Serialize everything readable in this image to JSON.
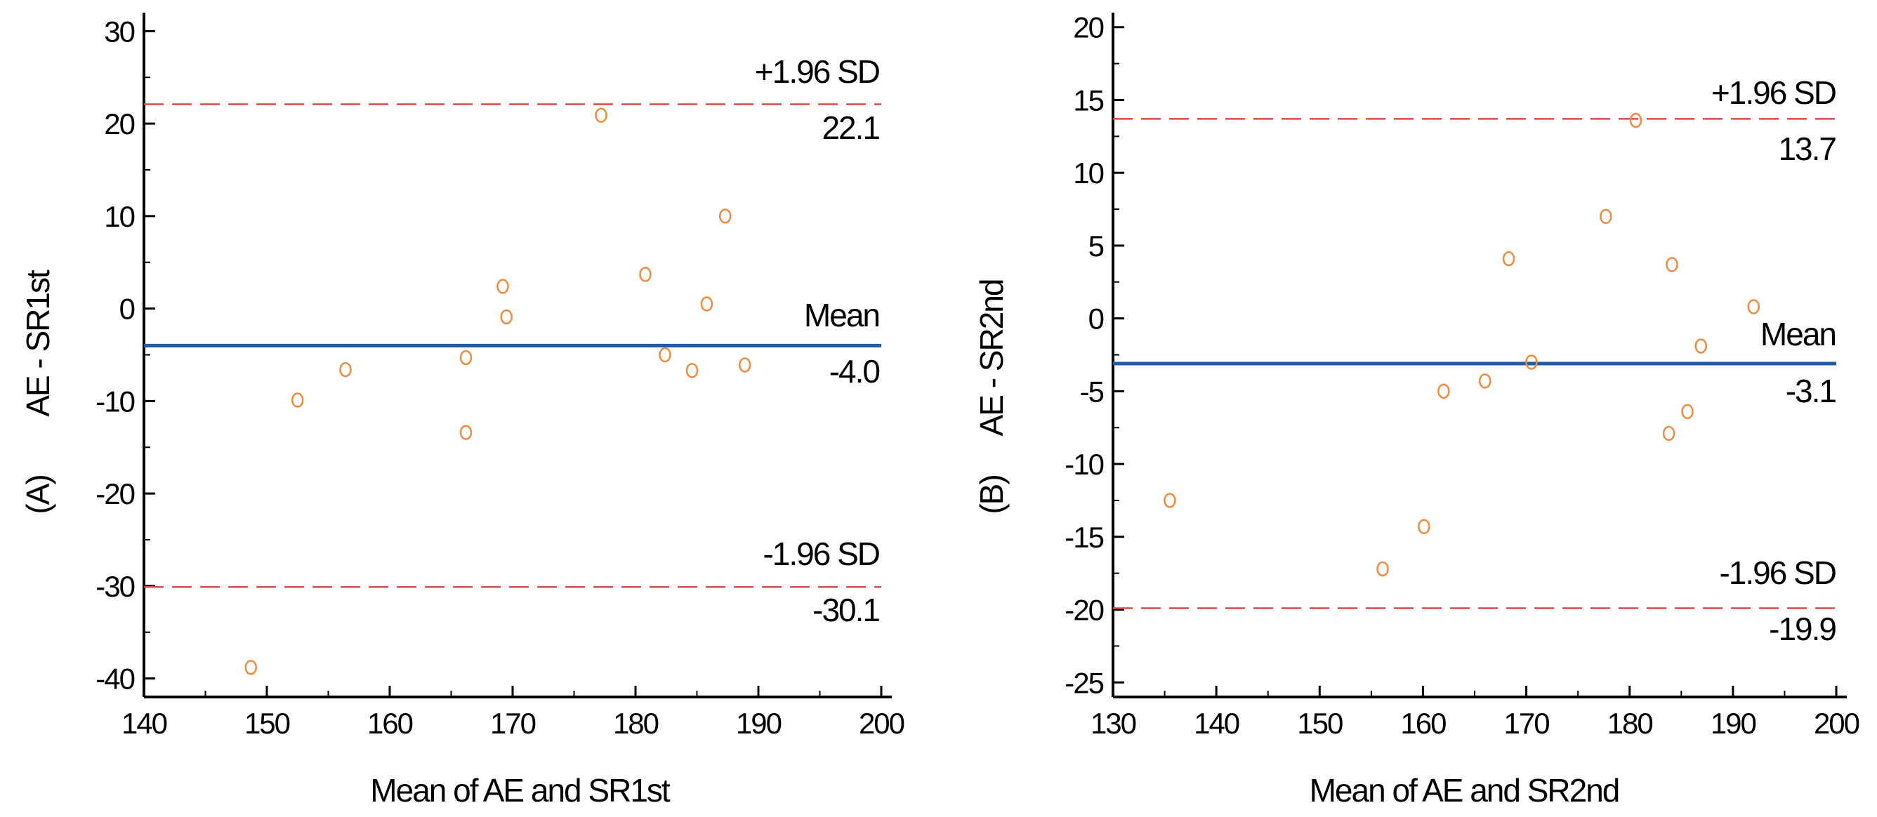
{
  "chart_data": [
    {
      "type": "scatter",
      "panel": "A",
      "panel_label": "(A)",
      "ylabel": "AE - SR1st",
      "xlabel": "Mean of AE and SR1st",
      "xlim": [
        140,
        200
      ],
      "ylim": [
        -42,
        32
      ],
      "x_ticks": [
        140,
        150,
        160,
        170,
        180,
        190,
        200
      ],
      "y_ticks": [
        -40,
        -30,
        -20,
        -10,
        0,
        10,
        20,
        30
      ],
      "grid": false,
      "mean": {
        "name": "Mean",
        "value": -4.0,
        "label": "-4.0",
        "color": "#1f5aa6"
      },
      "upper_loa": {
        "name": "+1.96 SD",
        "value": 22.1,
        "label": "22.1",
        "color": "#d94b4b"
      },
      "lower_loa": {
        "name": "-1.96 SD",
        "value": -30.1,
        "label": "-30.1",
        "color": "#d94b4b"
      },
      "marker_color": "#f08a3c",
      "points": [
        {
          "x": 148.7,
          "y": -38.8
        },
        {
          "x": 152.5,
          "y": -9.9
        },
        {
          "x": 156.4,
          "y": -6.6
        },
        {
          "x": 166.2,
          "y": -5.3
        },
        {
          "x": 166.2,
          "y": -13.4
        },
        {
          "x": 169.2,
          "y": 2.4
        },
        {
          "x": 169.5,
          "y": -0.9
        },
        {
          "x": 177.2,
          "y": 20.9
        },
        {
          "x": 180.8,
          "y": 3.7
        },
        {
          "x": 182.4,
          "y": -5.0
        },
        {
          "x": 184.6,
          "y": -6.7
        },
        {
          "x": 185.8,
          "y": 0.5
        },
        {
          "x": 187.3,
          "y": 10.0
        },
        {
          "x": 188.9,
          "y": -6.1
        }
      ]
    },
    {
      "type": "scatter",
      "panel": "B",
      "panel_label": "(B)",
      "ylabel": "AE - SR2nd",
      "xlabel": "Mean of AE and SR2nd",
      "xlim": [
        130,
        200
      ],
      "ylim": [
        -26,
        21
      ],
      "x_ticks": [
        130,
        140,
        150,
        160,
        170,
        180,
        190,
        200
      ],
      "y_ticks": [
        -25,
        -20,
        -15,
        -10,
        -5,
        0,
        5,
        10,
        15,
        20
      ],
      "grid": false,
      "mean": {
        "name": "Mean",
        "value": -3.1,
        "label": "-3.1",
        "color": "#1f5aa6"
      },
      "upper_loa": {
        "name": "+1.96 SD",
        "value": 13.7,
        "label": "13.7",
        "color": "#d94b4b"
      },
      "lower_loa": {
        "name": "-1.96 SD",
        "value": -19.9,
        "label": "-19.9",
        "color": "#d94b4b"
      },
      "marker_color": "#f08a3c",
      "points": [
        {
          "x": 135.5,
          "y": -12.5
        },
        {
          "x": 156.1,
          "y": -17.2
        },
        {
          "x": 160.1,
          "y": -14.3
        },
        {
          "x": 162.0,
          "y": -5.0
        },
        {
          "x": 166.0,
          "y": -4.3
        },
        {
          "x": 168.3,
          "y": 4.1
        },
        {
          "x": 170.5,
          "y": -3.0
        },
        {
          "x": 177.7,
          "y": 7.0
        },
        {
          "x": 180.6,
          "y": 13.6
        },
        {
          "x": 183.8,
          "y": -7.9
        },
        {
          "x": 184.1,
          "y": 3.7
        },
        {
          "x": 185.6,
          "y": -6.4
        },
        {
          "x": 186.9,
          "y": -1.9
        },
        {
          "x": 192.0,
          "y": 0.8
        }
      ]
    }
  ]
}
